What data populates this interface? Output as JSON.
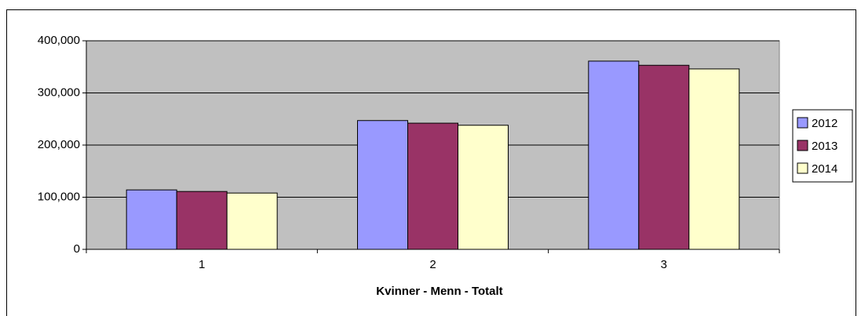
{
  "chart_data": {
    "type": "bar",
    "x_label": "Kvinner - Menn - Totalt",
    "categories": [
      "1",
      "2",
      "3"
    ],
    "series": [
      {
        "name": "2012",
        "color": "#9999ff",
        "values": [
          114000,
          247000,
          361000
        ]
      },
      {
        "name": "2013",
        "color": "#993366",
        "values": [
          111000,
          242000,
          353000
        ]
      },
      {
        "name": "2014",
        "color": "#ffffcc",
        "values": [
          108000,
          238000,
          346000
        ]
      }
    ],
    "ylim": [
      0,
      400000
    ],
    "yticks": [
      0,
      {
        "value": 100000,
        "label": "100,000"
      },
      {
        "value": 200000,
        "label": "200,000"
      },
      {
        "value": 300000,
        "label": "300,000"
      },
      {
        "value": 400000,
        "label": "400,000"
      }
    ],
    "grid": true,
    "legend": "right"
  }
}
